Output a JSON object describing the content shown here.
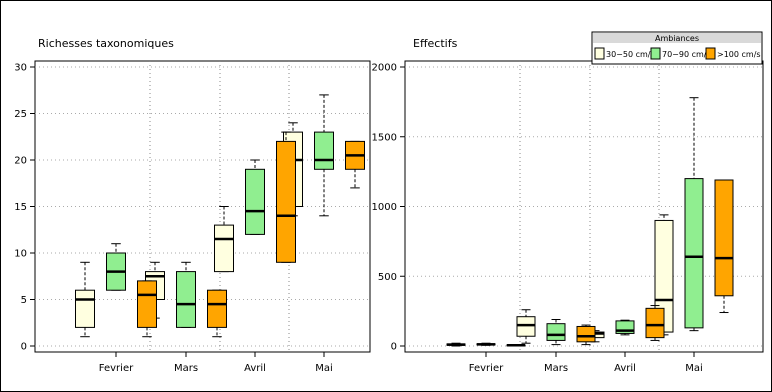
{
  "chart_data": [
    {
      "type": "boxplot",
      "title": "Richesses taxonomiques",
      "categories": [
        "Fevrier",
        "Mars",
        "Avril",
        "Mai"
      ],
      "ylim": [
        0,
        30
      ],
      "yticks": [
        0,
        5,
        10,
        15,
        20,
        25,
        30
      ],
      "grid": true,
      "series": [
        {
          "name": "30−50 cm/s",
          "boxes": [
            {
              "min": 1,
              "q1": 2,
              "median": 5,
              "q3": 6,
              "max": 9
            },
            {
              "min": 3,
              "q1": 5,
              "median": 7.5,
              "q3": 8,
              "max": 9
            },
            {
              "min": 8,
              "q1": 8,
              "median": 11.5,
              "q3": 13,
              "max": 15
            },
            {
              "min": 14,
              "q1": 15,
              "median": 20,
              "q3": 23,
              "max": 24
            }
          ]
        },
        {
          "name": "70−90 cm/s",
          "boxes": [
            {
              "min": 6,
              "q1": 6,
              "median": 8,
              "q3": 10,
              "max": 11
            },
            {
              "min": 2,
              "q1": 2,
              "median": 4.5,
              "q3": 8,
              "max": 9
            },
            {
              "min": 12,
              "q1": 12,
              "median": 14.5,
              "q3": 19,
              "max": 20
            },
            {
              "min": 14,
              "q1": 19,
              "median": 20,
              "q3": 23,
              "max": 27
            }
          ]
        },
        {
          "name": ">100 cm/s",
          "boxes": [
            {
              "min": 1,
              "q1": 2,
              "median": 5.5,
              "q3": 7,
              "max": 7
            },
            {
              "min": 1,
              "q1": 2,
              "median": 4.5,
              "q3": 6,
              "max": 6
            },
            {
              "min": 9,
              "q1": 9,
              "median": 14,
              "q3": 22,
              "max": 23
            },
            {
              "min": 17,
              "q1": 19,
              "median": 20.5,
              "q3": 22,
              "max": 22
            }
          ]
        }
      ]
    },
    {
      "type": "boxplot",
      "title": "Effectifs",
      "categories": [
        "Fevrier",
        "Mars",
        "Avril",
        "Mai"
      ],
      "ylim": [
        0,
        2000
      ],
      "yticks": [
        0,
        500,
        1000,
        1500,
        2000
      ],
      "grid": true,
      "legend": {
        "title": "Ambiances",
        "placement": "top-right"
      },
      "series": [
        {
          "name": "30−50 cm/s",
          "boxes": [
            {
              "min": 0,
              "q1": 5,
              "median": 10,
              "q3": 15,
              "max": 20
            },
            {
              "min": 20,
              "q1": 70,
              "median": 150,
              "q3": 210,
              "max": 260
            },
            {
              "min": 30,
              "q1": 60,
              "median": 90,
              "q3": 100,
              "max": 110
            },
            {
              "min": 80,
              "q1": 100,
              "median": 330,
              "q3": 900,
              "max": 940
            }
          ]
        },
        {
          "name": "70−90 cm/s",
          "boxes": [
            {
              "min": 5,
              "q1": 8,
              "median": 12,
              "q3": 16,
              "max": 20
            },
            {
              "min": 10,
              "q1": 40,
              "median": 80,
              "q3": 160,
              "max": 190
            },
            {
              "min": 80,
              "q1": 90,
              "median": 110,
              "q3": 180,
              "max": 185
            },
            {
              "min": 110,
              "q1": 130,
              "median": 640,
              "q3": 1200,
              "max": 1780
            }
          ]
        },
        {
          "name": ">100 cm/s",
          "boxes": [
            {
              "min": 0,
              "q1": 2,
              "median": 5,
              "q3": 8,
              "max": 10
            },
            {
              "min": 10,
              "q1": 30,
              "median": 70,
              "q3": 140,
              "max": 150
            },
            {
              "min": 40,
              "q1": 60,
              "median": 150,
              "q3": 270,
              "max": 290
            },
            {
              "min": 240,
              "q1": 360,
              "median": 630,
              "q3": 1190,
              "max": 1190
            }
          ]
        }
      ]
    }
  ],
  "colors": {
    "30−50 cm/s": "#ffffe0",
    "70−90 cm/s": "#90ee90",
    ">100 cm/s": "#ffa500"
  }
}
